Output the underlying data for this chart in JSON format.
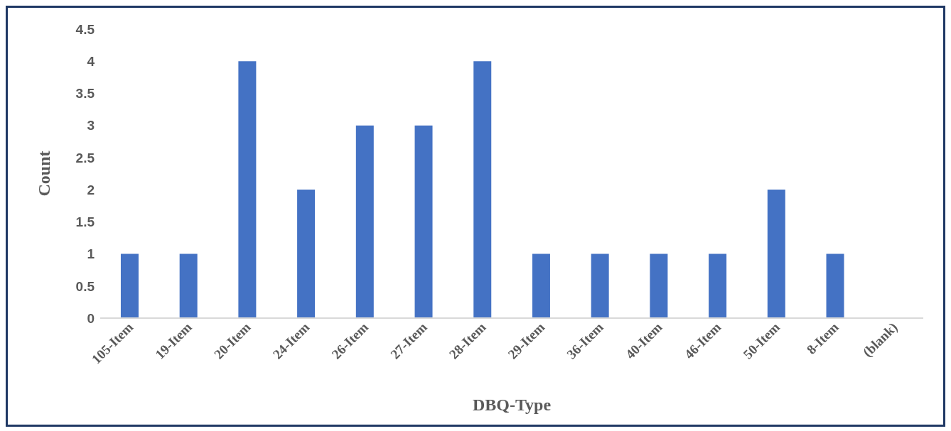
{
  "chart_data": {
    "type": "bar",
    "xlabel": "DBQ-Type",
    "ylabel": "Count",
    "categories": [
      "105-Item",
      "19-Item",
      "20-Item",
      "24-Item",
      "26-Item",
      "27-Item",
      "28-Item",
      "29-Item",
      "36-Item",
      "40-Item",
      "46-Item",
      "50-Item",
      "8-Item",
      "(blank)"
    ],
    "values": [
      1,
      1,
      4,
      2,
      3,
      3,
      4,
      1,
      1,
      1,
      1,
      2,
      1,
      null
    ],
    "color": "#4472c4",
    "ylim": [
      0,
      4.5
    ],
    "yticks": [
      0,
      0.5,
      1,
      1.5,
      2,
      2.5,
      3,
      3.5,
      4,
      4.5
    ],
    "grid": false,
    "legend": false
  }
}
